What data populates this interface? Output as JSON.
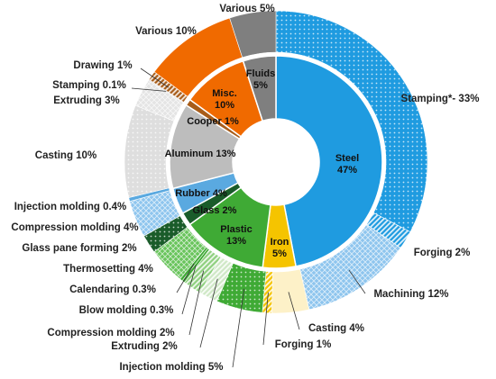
{
  "chart_data": {
    "type": "pie",
    "subtype": "sunburst",
    "inner": [
      {
        "label": "Steel",
        "value": "47%",
        "pct": 47,
        "color": "#1f9be0"
      },
      {
        "label": "Iron",
        "value": "5%",
        "pct": 5,
        "color": "#f5c400"
      },
      {
        "label": "Plastic",
        "value": "13%",
        "pct": 13,
        "color": "#3faa35"
      },
      {
        "label": "Glass",
        "value": "2%",
        "pct": 2,
        "color": "#1a5c2a"
      },
      {
        "label": "Rubber",
        "value": "4%",
        "pct": 4,
        "color": "#5aa9e0"
      },
      {
        "label": "Aluminum",
        "value": "13%",
        "pct": 13,
        "color": "#bdbdbd"
      },
      {
        "label": "Cooper",
        "value": "1%",
        "pct": 1,
        "color": "#a85d1a"
      },
      {
        "label": "Misc.",
        "value": "10%",
        "pct": 10,
        "color": "#f06a00"
      },
      {
        "label": "Fluids",
        "value": "5%",
        "pct": 5,
        "color": "#7f7f7f"
      }
    ],
    "outer": [
      {
        "label": "Stamping*- 33%",
        "pct": 33,
        "color": "#1f9be0",
        "texture": "dots"
      },
      {
        "label": "Forging 2%",
        "pct": 2,
        "color": "#1f9be0",
        "texture": "stripes"
      },
      {
        "label": "Machining 12%",
        "pct": 12,
        "color": "#8ec5ee",
        "texture": "grid"
      },
      {
        "label": "Casting 4%",
        "pct": 4,
        "color": "#fdf1c8",
        "texture": "none"
      },
      {
        "label": "Forging 1%",
        "pct": 1,
        "color": "#f5c400",
        "texture": "stripes"
      },
      {
        "label": "Injection molding 5%",
        "pct": 5,
        "color": "#3faa35",
        "texture": "dots"
      },
      {
        "label": "Extruding 2%",
        "pct": 2,
        "color": "#cfe8c6",
        "texture": "stripes"
      },
      {
        "label": "Compression molding 2%",
        "pct": 2,
        "color": "#8fd07f",
        "texture": "stripes"
      },
      {
        "label": "Blow molding 0.3%",
        "pct": 0.3,
        "color": "#3faa35",
        "texture": "none"
      },
      {
        "label": "Calendaring 0.3%",
        "pct": 0.3,
        "color": "#3faa35",
        "texture": "none"
      },
      {
        "label": "Thermosetting 4%",
        "pct": 4,
        "color": "#69c45c",
        "texture": "grid"
      },
      {
        "label": "Glass pane forming 2%",
        "pct": 2,
        "color": "#1a5c2a",
        "texture": "dots"
      },
      {
        "label": "Compression molding 4%",
        "pct": 4,
        "color": "#8ec5ee",
        "texture": "grid"
      },
      {
        "label": "Injection molding 0.4%",
        "pct": 0.4,
        "color": "#5aa9e0",
        "texture": "none"
      },
      {
        "label": "Casting 10%",
        "pct": 10,
        "color": "#dedede",
        "texture": "dots"
      },
      {
        "label": "Extruding 3%",
        "pct": 3,
        "color": "#e4e4e4",
        "texture": "grid"
      },
      {
        "label": "Stamping 0.1%",
        "pct": 0.1,
        "color": "#bdbdbd",
        "texture": "none"
      },
      {
        "label": "Drawing 1%",
        "pct": 1,
        "color": "#a85d1a",
        "texture": "stripes"
      },
      {
        "label": "Various 10%",
        "pct": 10,
        "color": "#f06a00",
        "texture": "none"
      },
      {
        "label": "Various 5%",
        "pct": 5,
        "color": "#7f7f7f",
        "texture": "none"
      }
    ]
  }
}
